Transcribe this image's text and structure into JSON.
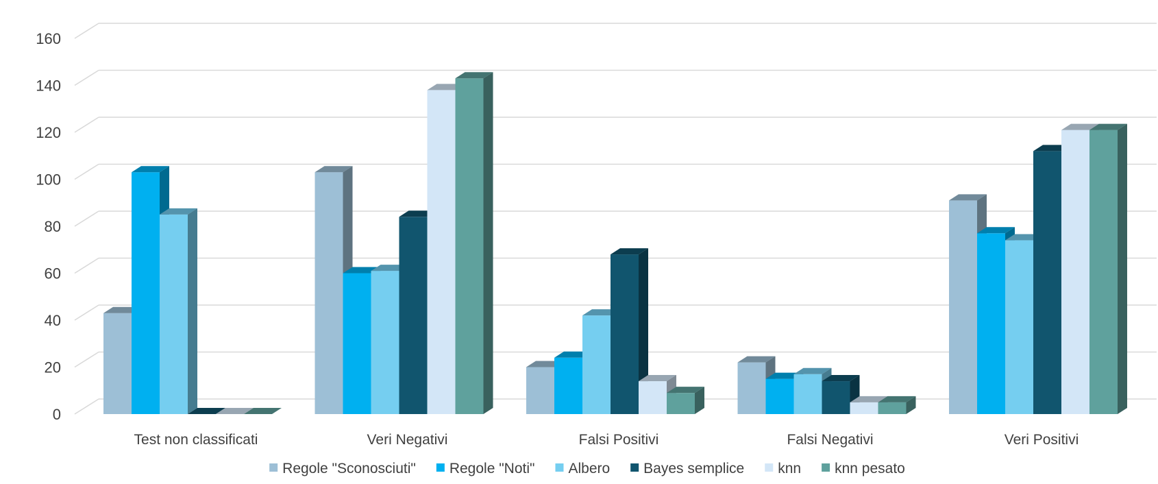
{
  "chart_data": {
    "type": "bar",
    "categories": [
      "Test non classificati",
      "Veri Negativi",
      "Falsi Positivi",
      "Falsi Negativi",
      "Veri Positivi"
    ],
    "series": [
      {
        "name": "Regole \"Sconosciuti\"",
        "color": "#9DBFD6",
        "values": [
          43,
          103,
          20,
          22,
          91
        ]
      },
      {
        "name": "Regole \"Noti\"",
        "color": "#00B0F0",
        "values": [
          103,
          60,
          24,
          15,
          77
        ]
      },
      {
        "name": "Albero",
        "color": "#75CEF0",
        "values": [
          85,
          61,
          42,
          17,
          74
        ]
      },
      {
        "name": "Bayes semplice",
        "color": "#11556E",
        "values": [
          0,
          84,
          68,
          14,
          112
        ]
      },
      {
        "name": "knn",
        "color": "#D3E6F7",
        "values": [
          0,
          138,
          14,
          5,
          121
        ]
      },
      {
        "name": "knn pesato",
        "color": "#5FA19D",
        "values": [
          0,
          143,
          9,
          5,
          121
        ]
      }
    ],
    "y_ticks": [
      "0",
      "20",
      "40",
      "60",
      "80",
      "100",
      "120",
      "140",
      "160"
    ],
    "ylim": [
      0,
      160
    ],
    "grid": true,
    "legend_position": "bottom",
    "style": "3d-clustered-column"
  }
}
